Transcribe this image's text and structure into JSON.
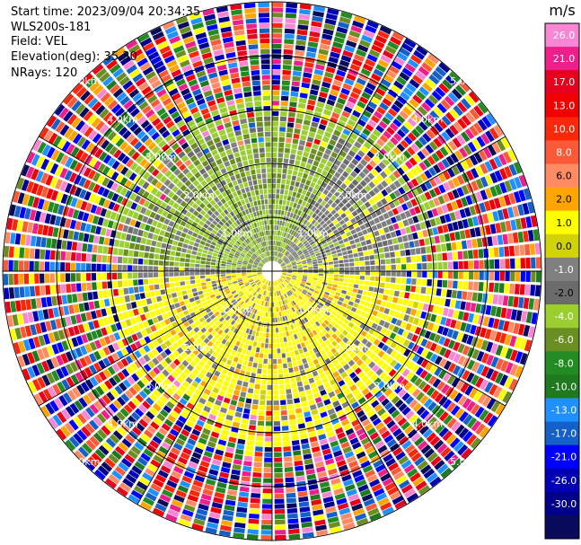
{
  "header": {
    "start_time": "Start time: 2023/09/04 20:34:35",
    "site": "WLS200s-181",
    "field": "Field: VEL",
    "elevation": "Elevation(deg): 35.30",
    "nrays": "NRays: 120"
  },
  "chart_data": {
    "type": "heatmap",
    "projection": "polar-ppi",
    "field": "VEL",
    "nrays": 120,
    "range_rings_km": [
      1,
      2,
      3,
      4,
      5
    ],
    "range_ring_labels": [
      "1.0km",
      "2.0km",
      "3.0km",
      "4.0km",
      "5.0km"
    ],
    "max_range_km": 5.0,
    "spokes_deg": [
      0,
      30,
      60,
      90,
      120,
      150,
      180,
      210,
      240,
      270,
      300,
      330
    ],
    "colorbar": {
      "unit": "m/s",
      "ticks": [
        "26.0",
        "21.0",
        "17.0",
        "13.0",
        "10.0",
        "8.0",
        "6.0",
        "2.0",
        "1.0",
        "0.0",
        "-1.0",
        "-2.0",
        "-4.0",
        "-6.0",
        "-8.0",
        "-10.0",
        "-13.0",
        "-17.0",
        "-21.0",
        "-26.0",
        "-30.0"
      ],
      "colors": [
        "#f986d5",
        "#ee1f8b",
        "#e6001e",
        "#f00000",
        "#f9280a",
        "#fa5a37",
        "#ff8b64",
        "#ffa500",
        "#ffff00",
        "#d2d20a",
        "#808080",
        "#6b6b6b",
        "#9ace31",
        "#6b8e23",
        "#228b22",
        "#1f7a1f",
        "#1e90ff",
        "#1560c8",
        "#0000ff",
        "#0000b5",
        "#00008b",
        "#0a0a5a"
      ]
    },
    "region_pattern": {
      "inner_north_west": "green / olive (approaching, about -2 to -4 m/s)",
      "inner_south_east": "yellow / gold (receding, about 1 to 2 m/s)",
      "background_mixed": "grey (near 0 m/s)",
      "outer_ranges": "noisy multicolored speckle (invalid / low SNR)"
    }
  }
}
